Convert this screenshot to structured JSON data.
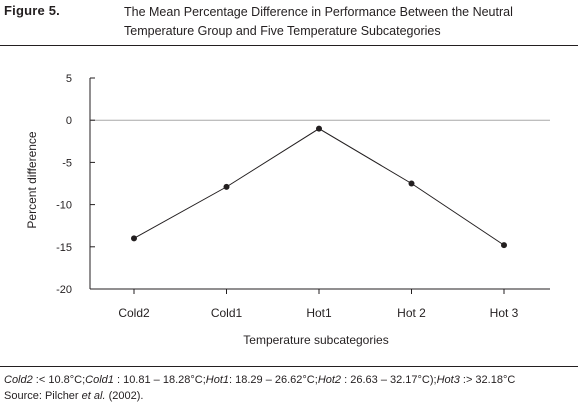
{
  "figure": {
    "label": "Figure 5.",
    "title": "The Mean Percentage Difference in Performance Between the Neutral Temperature Group and Five Temperature Subcategories"
  },
  "footnote": [
    {
      "text": "Cold2",
      "italic": true
    },
    {
      "text": " :< 10.8°C;",
      "italic": false
    },
    {
      "text": "Cold1",
      "italic": true
    },
    {
      "text": " : 10.81 – 18.28°C;",
      "italic": false
    },
    {
      "text": "Hot1",
      "italic": true
    },
    {
      "text": ": 18.29 – 26.62°C;",
      "italic": false
    },
    {
      "text": "Hot2",
      "italic": true
    },
    {
      "text": " : 26.63 – 32.17°C);",
      "italic": false
    },
    {
      "text": "Hot3",
      "italic": true
    },
    {
      "text": " :> 32.18°C",
      "italic": false
    }
  ],
  "source": {
    "prefix": "Source: Pilcher ",
    "italic": "et al.",
    "suffix": " (2002)."
  },
  "chart_data": {
    "type": "line",
    "categories": [
      "Cold2",
      "Cold1",
      "Hot1",
      "Hot 2",
      "Hot 3"
    ],
    "series": [
      {
        "values": [
          -14.0,
          -7.9,
          -1.0,
          -7.5,
          -14.8
        ]
      }
    ],
    "xlabel": "Temperature subcategories",
    "ylabel": "Percent difference",
    "ylim": [
      -20,
      5
    ],
    "yticks": [
      5,
      0,
      -5,
      -10,
      -15,
      -20
    ],
    "reference_line": 0,
    "grid": false,
    "colors": {
      "line": "#231f20",
      "axis": "#231f20",
      "reference": "#a8a8a8"
    }
  }
}
